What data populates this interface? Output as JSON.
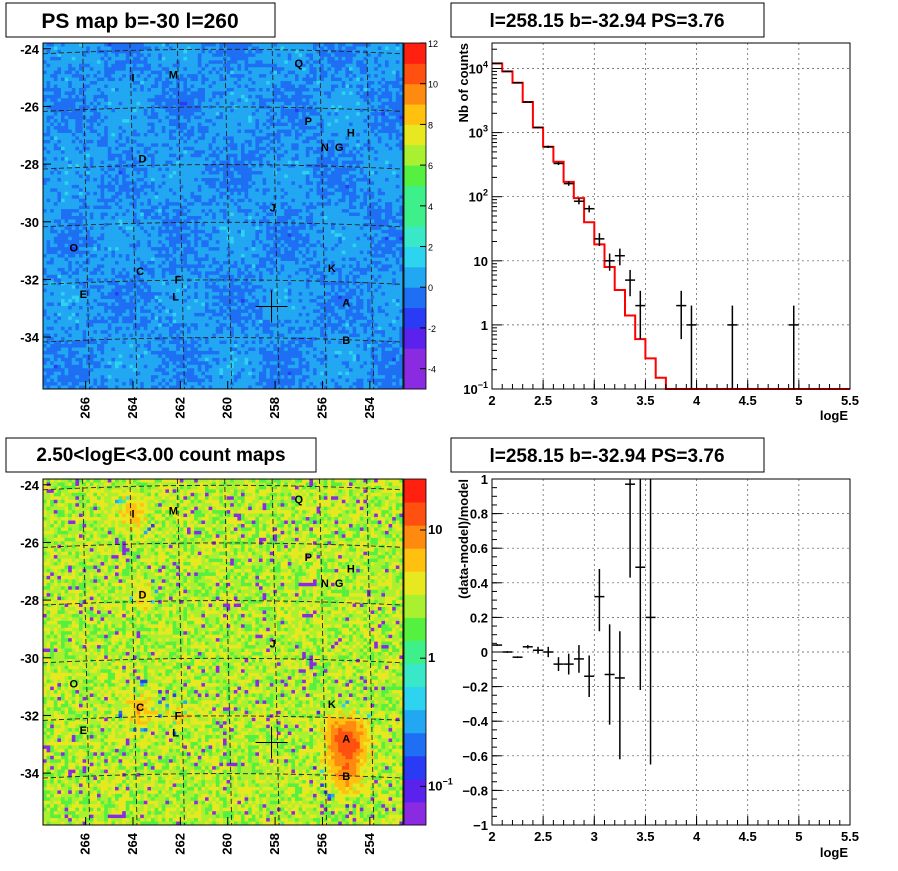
{
  "colors": {
    "palette": [
      "#8a2be2",
      "#5b22ee",
      "#2a3bf6",
      "#1f6ff4",
      "#22a7f2",
      "#2ed3f0",
      "#38e8c8",
      "#3ef08a",
      "#55f040",
      "#a8f030",
      "#e8e820",
      "#ffc010",
      "#ff8a10",
      "#ff5010",
      "#ff2010"
    ],
    "hist_line": "#ff0000",
    "points": "#000000"
  },
  "chart_data": [
    {
      "type": "heatmap",
      "title": "PS map b=-30 l=260",
      "x_ticks": [
        "266",
        "264",
        "262",
        "260",
        "258",
        "256",
        "254"
      ],
      "y_ticks": [
        "-24",
        "-26",
        "-28",
        "-30",
        "-32",
        "-34"
      ],
      "xlim": [
        267.8,
        252.6
      ],
      "ylim": [
        -35.8,
        -23.8
      ],
      "colorbar": {
        "min": -5,
        "max": 12,
        "scale": "linear",
        "ticks": [
          "-4",
          "-2",
          "0",
          "2",
          "4",
          "6",
          "8",
          "10",
          "12"
        ]
      },
      "background_level": -0.3,
      "marker": {
        "l": 258.15,
        "b": -32.94
      },
      "sources": [
        {
          "label": "Q",
          "l": 257.0,
          "b": -24.5
        },
        {
          "label": "I",
          "l": 264.0,
          "b": -25.0
        },
        {
          "label": "M",
          "l": 262.3,
          "b": -24.9
        },
        {
          "label": "P",
          "l": 256.6,
          "b": -26.5
        },
        {
          "label": "H",
          "l": 254.8,
          "b": -26.9
        },
        {
          "label": "N",
          "l": 255.9,
          "b": -27.4
        },
        {
          "label": "G",
          "l": 255.3,
          "b": -27.4
        },
        {
          "label": "D",
          "l": 263.6,
          "b": -27.8
        },
        {
          "label": "J",
          "l": 258.1,
          "b": -29.5
        },
        {
          "label": "O",
          "l": 266.5,
          "b": -30.9
        },
        {
          "label": "C",
          "l": 263.7,
          "b": -31.7
        },
        {
          "label": "F",
          "l": 262.1,
          "b": -32.0
        },
        {
          "label": "K",
          "l": 255.6,
          "b": -31.6
        },
        {
          "label": "E",
          "l": 266.1,
          "b": -32.5
        },
        {
          "label": "L",
          "l": 262.2,
          "b": -32.6
        },
        {
          "label": "A",
          "l": 255.0,
          "b": -32.8
        },
        {
          "label": "B",
          "l": 255.0,
          "b": -34.1
        }
      ]
    },
    {
      "type": "line",
      "title": "l=258.15 b=-32.94 PS=3.76",
      "xlabel": "logE",
      "ylabel": "Nb of counts",
      "xlim": [
        2,
        5.5
      ],
      "ylim": [
        0.1,
        25000
      ],
      "yscale": "log",
      "grid": true,
      "x_ticks": [
        "2",
        "2.5",
        "3",
        "3.5",
        "4",
        "4.5",
        "5",
        "5.5"
      ],
      "y_ticks": [
        {
          "v": 10000,
          "label": "10",
          "exp": "4"
        },
        {
          "v": 1000,
          "label": "10",
          "exp": "3"
        },
        {
          "v": 100,
          "label": "10",
          "exp": "2"
        },
        {
          "v": 10,
          "label": "10",
          "exp": ""
        },
        {
          "v": 1,
          "label": "1",
          "exp": ""
        },
        {
          "v": 0.1,
          "label": "10",
          "exp": "−1"
        }
      ],
      "model": {
        "bin_width": 0.1,
        "x_start": 2.0,
        "values": [
          12000,
          9000,
          6000,
          3000,
          1200,
          600,
          350,
          170,
          95,
          40,
          18,
          8,
          3.5,
          1.4,
          0.6,
          0.3,
          0.15,
          0.1,
          0.1,
          0.1,
          0.1,
          0.1,
          0.1,
          0.1,
          0.1,
          0.1,
          0.1,
          0.1,
          0.1,
          0.1,
          0.1,
          0.1,
          0.1,
          0.1,
          0.1
        ]
      },
      "data_points": [
        {
          "x": 2.05,
          "y": 12000,
          "lo": 11800,
          "hi": 12200
        },
        {
          "x": 2.15,
          "y": 9000,
          "lo": 8850,
          "hi": 9150
        },
        {
          "x": 2.25,
          "y": 6000,
          "lo": 5900,
          "hi": 6100
        },
        {
          "x": 2.35,
          "y": 3000,
          "lo": 2950,
          "hi": 3050
        },
        {
          "x": 2.45,
          "y": 1200,
          "lo": 1170,
          "hi": 1230
        },
        {
          "x": 2.55,
          "y": 600,
          "lo": 575,
          "hi": 625
        },
        {
          "x": 2.65,
          "y": 330,
          "lo": 312,
          "hi": 348
        },
        {
          "x": 2.75,
          "y": 160,
          "lo": 148,
          "hi": 172
        },
        {
          "x": 2.85,
          "y": 85,
          "lo": 76,
          "hi": 94
        },
        {
          "x": 2.95,
          "y": 65,
          "lo": 57,
          "hi": 73
        },
        {
          "x": 3.05,
          "y": 22,
          "lo": 17,
          "hi": 27
        },
        {
          "x": 3.15,
          "y": 10,
          "lo": 7,
          "hi": 13
        },
        {
          "x": 3.25,
          "y": 12,
          "lo": 8.5,
          "hi": 15.5
        },
        {
          "x": 3.35,
          "y": 5,
          "lo": 2.8,
          "hi": 7.2
        },
        {
          "x": 3.45,
          "y": 2,
          "lo": 0.6,
          "hi": 3.4
        },
        {
          "x": 3.85,
          "y": 2,
          "lo": 0.6,
          "hi": 3.4
        },
        {
          "x": 3.95,
          "y": 1,
          "lo": 0.1,
          "hi": 2
        },
        {
          "x": 4.35,
          "y": 1,
          "lo": 0.1,
          "hi": 2
        },
        {
          "x": 4.95,
          "y": 1,
          "lo": 0.1,
          "hi": 2
        }
      ]
    },
    {
      "type": "heatmap",
      "title": "2.50<logE<3.00 count maps",
      "x_ticks": [
        "266",
        "264",
        "262",
        "260",
        "258",
        "256",
        "254"
      ],
      "y_ticks": [
        "-24",
        "-26",
        "-28",
        "-30",
        "-32",
        "-34"
      ],
      "xlim": [
        267.8,
        252.6
      ],
      "ylim": [
        -35.8,
        -23.8
      ],
      "colorbar": {
        "min": 0.05,
        "max": 25,
        "scale": "log",
        "ticks": [
          {
            "v": 10,
            "label": "10",
            "exp": ""
          },
          {
            "v": 1,
            "label": "1",
            "exp": ""
          },
          {
            "v": 0.1,
            "label": "10",
            "exp": "−1"
          }
        ]
      },
      "background_level": 2.5,
      "marker": {
        "l": 258.15,
        "b": -32.94
      },
      "hotspots": [
        {
          "l": 255.0,
          "b": -32.9,
          "sigma": 0.5,
          "amp": 12
        },
        {
          "l": 255.0,
          "b": -34.0,
          "sigma": 0.4,
          "amp": 6
        },
        {
          "l": 263.7,
          "b": -31.7,
          "sigma": 0.35,
          "amp": 4
        },
        {
          "l": 264.0,
          "b": -25.0,
          "sigma": 0.4,
          "amp": 2.5
        },
        {
          "l": 262.1,
          "b": -32.0,
          "sigma": 0.3,
          "amp": 2
        },
        {
          "l": 263.6,
          "b": -27.8,
          "sigma": 0.3,
          "amp": 2
        }
      ],
      "sources_ref": 0
    },
    {
      "type": "scatter",
      "title": "l=258.15 b=-32.94 PS=3.76",
      "xlabel": "logE",
      "ylabel": "(data-model)/model",
      "xlim": [
        2,
        5.5
      ],
      "ylim": [
        -1,
        1
      ],
      "grid": true,
      "x_ticks": [
        "2",
        "2.5",
        "3",
        "3.5",
        "4",
        "4.5",
        "5",
        "5.5"
      ],
      "y_ticks": [
        "1",
        "0.8",
        "0.6",
        "0.4",
        "0.2",
        "0",
        "−0.2",
        "−0.4",
        "−0.6",
        "−0.8",
        "−1"
      ],
      "data_points": [
        {
          "x": 2.05,
          "y": 0.04,
          "lo": 0.035,
          "hi": 0.045
        },
        {
          "x": 2.15,
          "y": 0.0,
          "lo": -0.005,
          "hi": 0.005
        },
        {
          "x": 2.25,
          "y": -0.03,
          "lo": -0.035,
          "hi": -0.025
        },
        {
          "x": 2.35,
          "y": 0.03,
          "lo": 0.02,
          "hi": 0.04
        },
        {
          "x": 2.45,
          "y": 0.01,
          "lo": -0.01,
          "hi": 0.03
        },
        {
          "x": 2.55,
          "y": 0.0,
          "lo": -0.03,
          "hi": 0.03
        },
        {
          "x": 2.65,
          "y": -0.07,
          "lo": -0.11,
          "hi": -0.03
        },
        {
          "x": 2.75,
          "y": -0.07,
          "lo": -0.13,
          "hi": -0.01
        },
        {
          "x": 2.85,
          "y": -0.04,
          "lo": -0.12,
          "hi": 0.04
        },
        {
          "x": 2.95,
          "y": -0.14,
          "lo": -0.26,
          "hi": -0.02
        },
        {
          "x": 3.05,
          "y": 0.32,
          "lo": 0.12,
          "hi": 0.48
        },
        {
          "x": 3.15,
          "y": -0.13,
          "lo": -0.42,
          "hi": 0.16
        },
        {
          "x": 3.25,
          "y": -0.15,
          "lo": -0.62,
          "hi": 0.12
        },
        {
          "x": 3.35,
          "y": 0.97,
          "lo": 0.43,
          "hi": 1.0
        },
        {
          "x": 3.45,
          "y": 0.49,
          "lo": -0.22,
          "hi": 1.0
        },
        {
          "x": 3.55,
          "y": 0.2,
          "lo": -0.65,
          "hi": 1.0
        }
      ]
    }
  ]
}
